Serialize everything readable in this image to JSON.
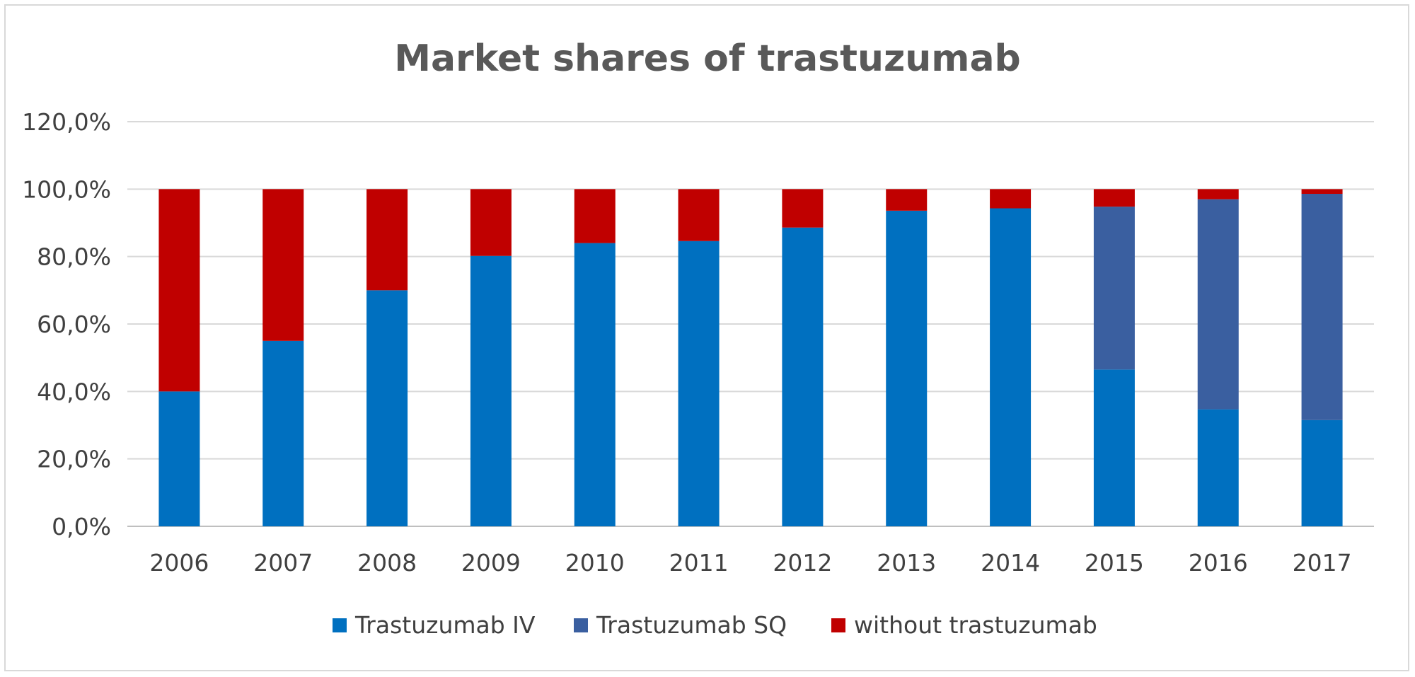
{
  "chart_data": {
    "type": "bar",
    "stacked": true,
    "title": "Market shares of trastuzumab",
    "xlabel": "",
    "ylabel": "",
    "categories": [
      "2006",
      "2007",
      "2008",
      "2009",
      "2010",
      "2011",
      "2012",
      "2013",
      "2014",
      "2015",
      "2016",
      "2017"
    ],
    "ylim": [
      0,
      120
    ],
    "yticks": [
      0,
      20,
      40,
      60,
      80,
      100,
      120
    ],
    "ytick_labels": [
      "0,0%",
      "20,0%",
      "40,0%",
      "60,0%",
      "80,0%",
      "100,0%",
      "120,0%"
    ],
    "grid": true,
    "legend_position": "bottom",
    "series": [
      {
        "name": "Trastuzumab IV",
        "color": "#0070C0",
        "values": [
          40.0,
          55.0,
          70.0,
          80.2,
          84.0,
          84.6,
          88.6,
          93.6,
          94.3,
          46.5,
          34.7,
          31.5
        ]
      },
      {
        "name": "Trastuzumab SQ",
        "color": "#3A5FA0",
        "values": [
          0.0,
          0.0,
          0.0,
          0.0,
          0.0,
          0.0,
          0.0,
          0.0,
          0.0,
          48.3,
          62.3,
          67.1
        ]
      },
      {
        "name": "without trastuzumab",
        "color": "#C00000",
        "values": [
          60.0,
          45.0,
          30.0,
          19.8,
          16.0,
          15.4,
          11.4,
          6.4,
          5.7,
          5.2,
          3.0,
          1.4
        ]
      }
    ]
  }
}
